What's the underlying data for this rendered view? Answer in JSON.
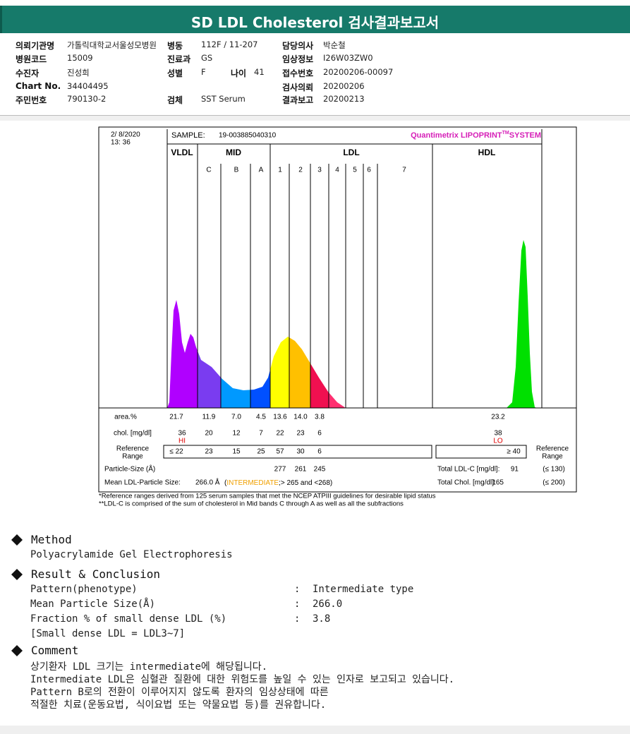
{
  "header": {
    "title": "SD LDL Cholesterol 검사결과보고서"
  },
  "info": {
    "left": [
      {
        "label": "의뢰기관명",
        "value": "가톨릭대학교서울성모병원"
      },
      {
        "label": "병원코드",
        "value": "15009"
      },
      {
        "label": "수진자",
        "value": "진성희"
      },
      {
        "label": "Chart No.",
        "value": "34404495"
      },
      {
        "label": "주민번호",
        "value": "790130-2"
      }
    ],
    "middle": [
      {
        "label": "병동",
        "value": "112F / 11-207"
      },
      {
        "label": "진료과",
        "value": "GS"
      },
      {
        "label": "성별",
        "value": "F"
      },
      {
        "label": "나이",
        "value": "41"
      },
      {
        "label": "검체",
        "value": "SST Serum"
      }
    ],
    "right": [
      {
        "label": "담당의사",
        "value": "박순철"
      },
      {
        "label": "임상정보",
        "value": "I26W03ZW0"
      },
      {
        "label": "접수번호",
        "value": "20200206-00097"
      },
      {
        "label": "검사의뢰",
        "value": "20200206"
      },
      {
        "label": "결과보고",
        "value": "20200213"
      }
    ]
  },
  "report": {
    "date": "2/ 8/2020",
    "time": "13: 36",
    "sample_label": "SAMPLE:",
    "sample_id": "19-003885040310",
    "system": "Quantimetrix LIPOPRINT",
    "system_tm": "TM",
    "system_suffix": "SYSTEM",
    "bands": [
      "VLDL",
      "MID",
      "LDL",
      "HDL"
    ],
    "subbands": [
      "C",
      "B",
      "A",
      "1",
      "2",
      "3",
      "4",
      "5",
      "6",
      "7"
    ],
    "area_label": "area.%",
    "area": [
      "21.7",
      "11.9",
      "7.0",
      "4.5",
      "13.6",
      "14.0",
      "3.8",
      "23.2"
    ],
    "chol_label": "chol. [mg/dl]",
    "chol": [
      "36",
      "20",
      "12",
      "7",
      "22",
      "23",
      "6",
      "38"
    ],
    "flags": [
      "HI",
      "LO"
    ],
    "ref_label": [
      "Reference",
      "Range"
    ],
    "ref": [
      "≤ 22",
      "23",
      "15",
      "25",
      "57",
      "30",
      "6",
      "≥ 40"
    ],
    "particle_label": "Particle-Size (Å)",
    "particle": [
      "277",
      "261",
      "245"
    ],
    "mean_label": "Mean LDL-Particle Size:",
    "mean_value": "266.0 Å",
    "mean_open": "(",
    "mean_class": "INTERMEDIATE",
    "mean_range": ";> 265 and <268)",
    "total_ldl_label": "Total LDL-C [mg/dl]:",
    "total_ldl": "91",
    "total_ldl_ref": "(≤ 130)",
    "total_chol_label": "Total Chol. [mg/dl]:",
    "total_chol": "165",
    "total_chol_ref": "(≤ 200)",
    "footnotes": [
      "*Reference ranges derived from 125 serum samples that met the NCEP ATPIII guidelines for desirable lipid status",
      "**LDL-C is comprised of the sum of cholesterol in Mid bands C through A as well as all the subfractions"
    ]
  },
  "method": {
    "heading": "Method",
    "text": "Polyacrylamide Gel Electrophoresis"
  },
  "result": {
    "heading": "Result & Conclusion",
    "separator": ":",
    "rows": [
      {
        "label": "Pattern(phenotype)",
        "value": "Intermediate type"
      },
      {
        "label": "Mean Particle Size(Å)",
        "value": "266.0"
      },
      {
        "label": "Fraction % of small dense LDL (%)",
        "value": "3.8"
      }
    ],
    "note": "[Small dense LDL = LDL3~7]"
  },
  "comment": {
    "heading": "Comment",
    "lines": [
      "상기환자 LDL 크기는 intermediate에 해당됩니다.",
      "Intermediate LDL은 심혈관 질환에 대한 위험도를 높일 수 있는 인자로 보고되고 있습니다.",
      "Pattern B로의 전환이 이루어지지 않도록 환자의 임상상태에 따른",
      "적절한 치료(운동요법, 식이요법 또는 약물요법 등)를 권유합니다."
    ]
  }
}
